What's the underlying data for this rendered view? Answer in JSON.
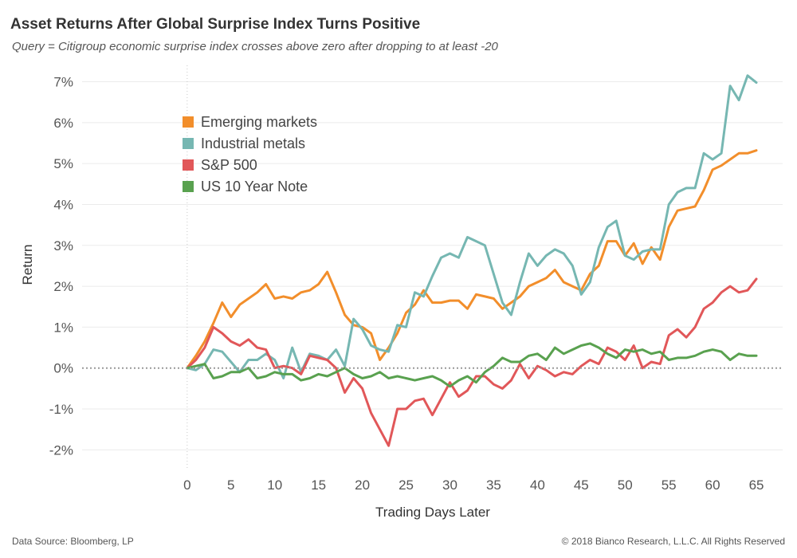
{
  "header": {
    "title": "Asset Returns After Global Surprise Index Turns Positive",
    "subtitle": "Query = Citigroup economic surprise index crosses above zero after dropping to at least -20"
  },
  "footer": {
    "source": "Data Source: Bloomberg, LP",
    "copyright": "© 2018 Bianco Research, L.L.C. All Rights Reserved"
  },
  "chart_data": {
    "type": "line",
    "title": "Asset Returns After Global Surprise Index Turns Positive",
    "subtitle": "Query = Citigroup economic surprise index crosses above zero after dropping to at least -20",
    "xlabel": "Trading Days Later",
    "ylabel": "Return",
    "xlim": [
      -12,
      68
    ],
    "ylim": [
      -2.5,
      7.4
    ],
    "x_ticks": [
      0,
      5,
      10,
      15,
      20,
      25,
      30,
      35,
      40,
      45,
      50,
      55,
      60,
      65
    ],
    "y_ticks": [
      -2,
      -1,
      0,
      1,
      2,
      3,
      4,
      5,
      6,
      7
    ],
    "y_tick_labels": [
      "-2%",
      "-1%",
      "0%",
      "1%",
      "2%",
      "3%",
      "4%",
      "5%",
      "6%",
      "7%"
    ],
    "grid": "horizontal",
    "zero_line": "dotted",
    "legend_position": "top-left",
    "x": [
      0,
      1,
      2,
      3,
      4,
      5,
      6,
      7,
      8,
      9,
      10,
      11,
      12,
      13,
      14,
      15,
      16,
      17,
      18,
      19,
      20,
      21,
      22,
      23,
      24,
      25,
      26,
      27,
      28,
      29,
      30,
      31,
      32,
      33,
      34,
      35,
      36,
      37,
      38,
      39,
      40,
      41,
      42,
      43,
      44,
      45,
      46,
      47,
      48,
      49,
      50,
      51,
      52,
      53,
      54,
      55,
      56,
      57,
      58,
      59,
      60,
      61,
      62,
      63,
      64,
      65
    ],
    "series": [
      {
        "name": "Emerging markets",
        "color": "#F28E2B",
        "values": [
          0,
          0.3,
          0.65,
          1.1,
          1.6,
          1.25,
          1.55,
          1.7,
          1.85,
          2.05,
          1.7,
          1.75,
          1.7,
          1.85,
          1.9,
          2.05,
          2.35,
          1.85,
          1.3,
          1.05,
          1.0,
          0.85,
          0.2,
          0.5,
          0.85,
          1.35,
          1.55,
          1.9,
          1.6,
          1.6,
          1.65,
          1.65,
          1.45,
          1.8,
          1.75,
          1.7,
          1.45,
          1.6,
          1.75,
          2.0,
          2.1,
          2.2,
          2.4,
          2.1,
          2.0,
          1.9,
          2.3,
          2.5,
          3.1,
          3.1,
          2.75,
          3.05,
          2.55,
          2.95,
          2.65,
          3.45,
          3.85,
          3.9,
          3.95,
          4.35,
          4.85,
          4.95,
          5.1,
          5.25,
          5.25,
          5.32
        ]
      },
      {
        "name": "Industrial metals",
        "color": "#76B7B2",
        "values": [
          0,
          -0.05,
          0.1,
          0.45,
          0.4,
          0.15,
          -0.1,
          0.2,
          0.2,
          0.35,
          0.2,
          -0.25,
          0.5,
          -0.1,
          0.35,
          0.3,
          0.2,
          0.45,
          0.05,
          1.2,
          0.95,
          0.55,
          0.45,
          0.4,
          1.05,
          1.0,
          1.85,
          1.75,
          2.25,
          2.7,
          2.8,
          2.7,
          3.2,
          3.1,
          3.0,
          2.3,
          1.6,
          1.3,
          2.1,
          2.8,
          2.5,
          2.75,
          2.9,
          2.8,
          2.5,
          1.8,
          2.1,
          2.95,
          3.45,
          3.6,
          2.75,
          2.65,
          2.85,
          2.9,
          2.9,
          4.0,
          4.3,
          4.4,
          4.4,
          5.25,
          5.1,
          5.25,
          6.9,
          6.55,
          7.15,
          6.98
        ]
      },
      {
        "name": "S&P 500",
        "color": "#E15759",
        "values": [
          0,
          0.2,
          0.5,
          1.0,
          0.85,
          0.65,
          0.55,
          0.7,
          0.5,
          0.45,
          0.0,
          0.05,
          0.0,
          -0.15,
          0.3,
          0.25,
          0.2,
          0.0,
          -0.6,
          -0.25,
          -0.5,
          -1.1,
          -1.5,
          -1.9,
          -1.0,
          -1.0,
          -0.8,
          -0.75,
          -1.15,
          -0.75,
          -0.35,
          -0.7,
          -0.55,
          -0.2,
          -0.2,
          -0.4,
          -0.5,
          -0.3,
          0.1,
          -0.25,
          0.05,
          -0.05,
          -0.2,
          -0.1,
          -0.15,
          0.05,
          0.2,
          0.1,
          0.5,
          0.4,
          0.2,
          0.55,
          0.0,
          0.15,
          0.1,
          0.8,
          0.95,
          0.75,
          1.0,
          1.45,
          1.6,
          1.85,
          2.0,
          1.85,
          1.9,
          2.18
        ]
      },
      {
        "name": "US 10 Year Note",
        "color": "#59A14F",
        "values": [
          0,
          0.05,
          0.1,
          -0.25,
          -0.2,
          -0.1,
          -0.1,
          0.0,
          -0.25,
          -0.2,
          -0.1,
          -0.15,
          -0.15,
          -0.3,
          -0.25,
          -0.15,
          -0.2,
          -0.1,
          0.0,
          -0.15,
          -0.25,
          -0.2,
          -0.1,
          -0.25,
          -0.2,
          -0.25,
          -0.3,
          -0.25,
          -0.2,
          -0.3,
          -0.45,
          -0.3,
          -0.2,
          -0.35,
          -0.1,
          0.05,
          0.25,
          0.15,
          0.15,
          0.3,
          0.35,
          0.2,
          0.5,
          0.35,
          0.45,
          0.55,
          0.6,
          0.5,
          0.35,
          0.25,
          0.45,
          0.4,
          0.45,
          0.35,
          0.4,
          0.2,
          0.25,
          0.25,
          0.3,
          0.4,
          0.45,
          0.4,
          0.2,
          0.35,
          0.3,
          0.3
        ]
      }
    ]
  }
}
